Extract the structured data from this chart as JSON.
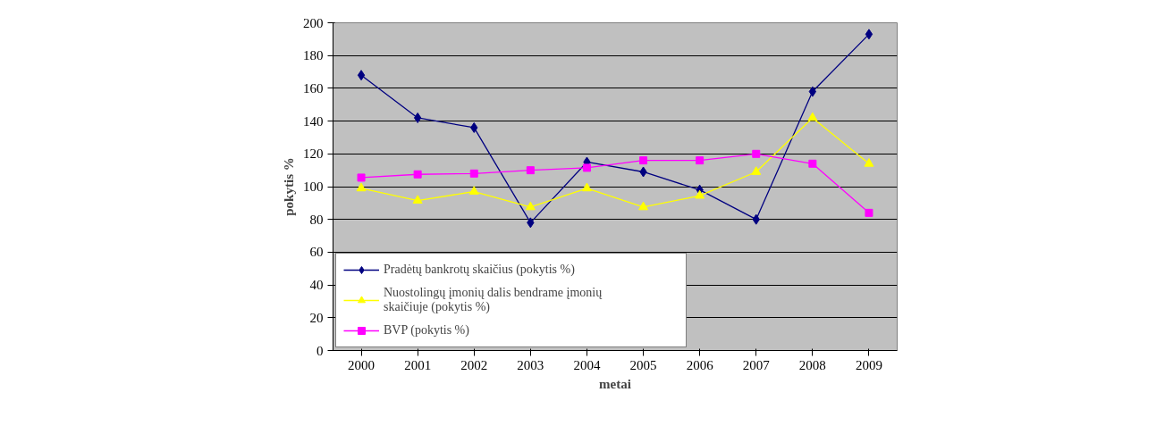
{
  "chart_data": {
    "type": "line",
    "xlabel": "metai",
    "ylabel": "pokytis %",
    "categories": [
      "2000",
      "2001",
      "2002",
      "2003",
      "2004",
      "2005",
      "2006",
      "2007",
      "2008",
      "2009"
    ],
    "ylim": [
      0,
      200
    ],
    "yticks": [
      0,
      20,
      40,
      60,
      80,
      100,
      120,
      140,
      160,
      180,
      200
    ],
    "grid": "y",
    "legend": "bottom left",
    "series": [
      {
        "name": "Pradėtų bankrotų skaičius (pokytis %)",
        "color": "#000080",
        "marker": "diamond",
        "values": [
          168,
          142,
          136,
          78,
          115,
          109,
          98,
          80,
          158,
          193
        ]
      },
      {
        "name": "Nuostolingų įmonių dalis bendrame įmonių skaičiuje (pokytis %)",
        "color": "#ffff00",
        "marker": "triangle",
        "values": [
          99,
          91.5,
          97,
          87.5,
          99,
          87.5,
          94.5,
          109,
          142,
          114
        ]
      },
      {
        "name": "BVP (pokytis %)",
        "color": "#ff00ff",
        "marker": "square",
        "values": [
          105.5,
          107.5,
          108,
          110,
          111.5,
          116,
          116,
          120,
          114,
          84
        ]
      }
    ]
  }
}
